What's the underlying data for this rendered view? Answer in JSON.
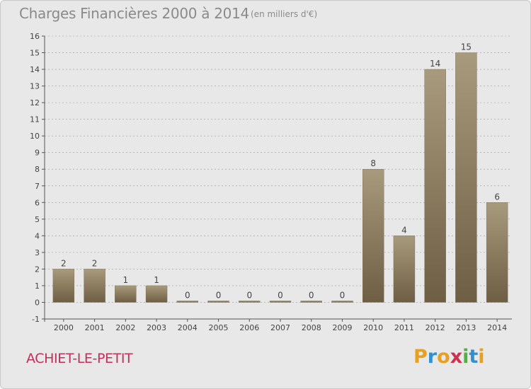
{
  "title": "Charges Financières 2000 à 2014",
  "subtitle": "(en milliers d'€)",
  "commune": "ACHIET-LE-PETIT",
  "logo": {
    "letters": [
      "P",
      "r",
      "o",
      "x",
      "i",
      "t",
      "i"
    ],
    "colors": [
      "#e8a020",
      "#3090d0",
      "#e8a020",
      "#d03050",
      "#50b040",
      "#3090d0",
      "#e8a020"
    ]
  },
  "colors": {
    "bar_light": "#a89a7c",
    "bar_dark": "#6e5e44",
    "axis": "#555555",
    "grid": "#999999"
  },
  "chart_data": {
    "type": "bar",
    "title": "Charges Financières 2000 à 2014",
    "subtitle": "(en milliers d'€)",
    "categories": [
      "2000",
      "2001",
      "2002",
      "2003",
      "2004",
      "2005",
      "2006",
      "2007",
      "2008",
      "2009",
      "2010",
      "2011",
      "2012",
      "2013",
      "2014"
    ],
    "values": [
      2,
      2,
      1,
      1,
      0,
      0,
      0,
      0,
      0,
      0,
      8,
      4,
      14,
      15,
      6
    ],
    "ylim": [
      -1,
      16
    ],
    "yticks": [
      -1,
      0,
      1,
      2,
      3,
      4,
      5,
      6,
      7,
      8,
      9,
      10,
      11,
      12,
      13,
      14,
      15,
      16
    ],
    "grid": "horizontal dashed",
    "legend": "none"
  }
}
